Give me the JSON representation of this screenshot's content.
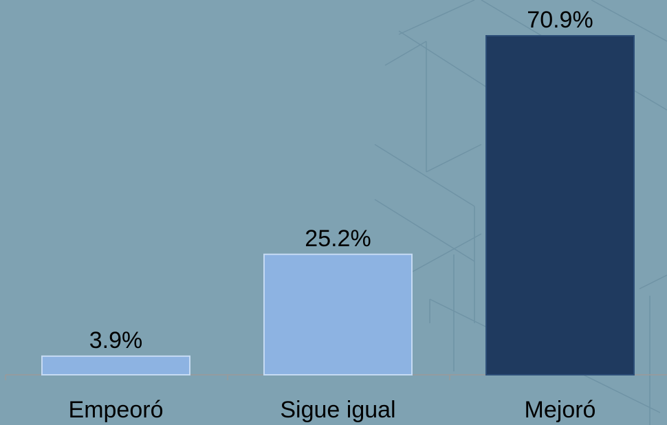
{
  "chart_data": {
    "type": "bar",
    "categories": [
      "Empeoró",
      "Sigue igual",
      "Mejoró"
    ],
    "values": [
      3.9,
      25.2,
      70.9
    ],
    "value_labels": [
      "3.9%",
      "25.2%",
      "70.9%"
    ],
    "colors": [
      "#8db3e2",
      "#8db3e2",
      "#1f3a5f"
    ]
  }
}
